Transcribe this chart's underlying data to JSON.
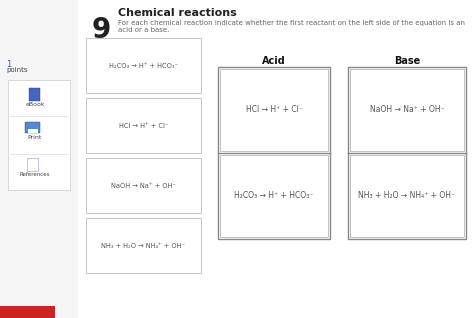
{
  "title": "Chemical reactions",
  "subtitle": "For each chemical reaction indicate whether the first reactant on the left side of the equation is an acid or a base.",
  "question_number": "9",
  "points_label": "1",
  "points_sub": "points",
  "sidebar_items": [
    "eBook",
    "Print",
    "References"
  ],
  "reactions": [
    "H₂CO₃ → H⁺ + HCO₃⁻",
    "HCl → H⁺ + Cl⁻",
    "NaOH → Na⁺ + OH⁻",
    "NH₃ + H₂O → NH₄⁺ + OH⁻"
  ],
  "acid_column_label": "Acid",
  "base_column_label": "Base",
  "acid_reactions": [
    "HCl → H⁺ + Cl⁻",
    "H₂CO₃ → H⁺ + HCO₃⁻"
  ],
  "base_reactions": [
    "NaOH → Na⁺ + OH⁻",
    "NH₃ + H₂O → NH₄⁺ + OH⁻"
  ],
  "bg_color": "#ffffff",
  "sidebar_bg": "#f5f5f5",
  "box_facecolor": "#ffffff",
  "border_color": "#cccccc",
  "text_color": "#555555",
  "title_color": "#222222",
  "qnum_color": "#222222",
  "subtitle_color": "#666666",
  "acid_base_header_color": "#111111",
  "sidebar_text_color": "#444444",
  "red_bar_color": "#cc2222",
  "sidebar_icon_blue": "#4466bb",
  "sidebar_icon_gray": "#aaaacc"
}
